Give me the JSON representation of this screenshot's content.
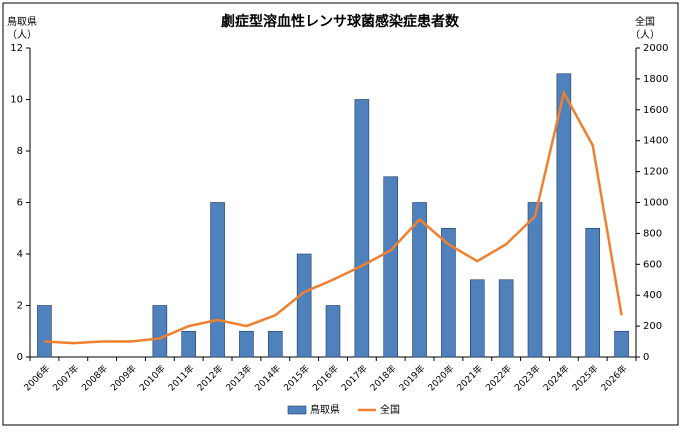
{
  "chart_data": {
    "type": "bar-line",
    "title": "劇症型溶血性レンサ球菌感染症患者数",
    "ylabel": "鳥取県",
    "yunit": "（人）",
    "y2label": "全国",
    "y2unit": "（人）",
    "categories": [
      "2006年",
      "2007年",
      "2008年",
      "2009年",
      "2010年",
      "2011年",
      "2012年",
      "2013年",
      "2014年",
      "2015年",
      "2016年",
      "2017年",
      "2018年",
      "2019年",
      "2020年",
      "2021年",
      "2022年",
      "2023年",
      "2024年",
      "2025年",
      "2026年"
    ],
    "series": [
      {
        "name": "鳥取県",
        "type": "bar",
        "color": "#4f81bd",
        "values": [
          2,
          0,
          0,
          0,
          2,
          1,
          6,
          1,
          1,
          4,
          2,
          10,
          7,
          6,
          5,
          3,
          3,
          6,
          11,
          5,
          1
        ]
      },
      {
        "name": "全国",
        "type": "line",
        "axis": "y2",
        "color": "#f0802f",
        "values": [
          100,
          90,
          100,
          100,
          120,
          200,
          240,
          200,
          270,
          420,
          500,
          590,
          690,
          890,
          730,
          620,
          730,
          910,
          1710,
          1370,
          270
        ]
      }
    ],
    "ylim": [
      0,
      12
    ],
    "yticks": [
      0,
      2,
      4,
      6,
      8,
      10,
      12
    ],
    "y2lim": [
      0,
      2000
    ],
    "y2ticks": [
      0,
      200,
      400,
      600,
      800,
      1000,
      1200,
      1400,
      1600,
      1800,
      2000
    ],
    "legend": "bottom"
  }
}
